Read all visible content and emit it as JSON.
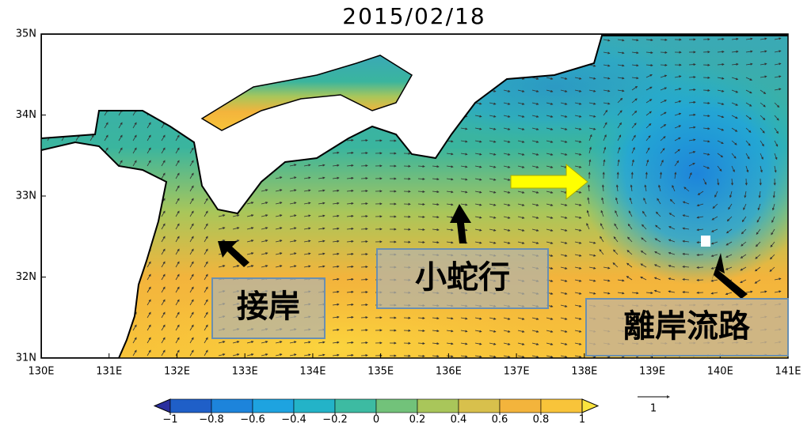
{
  "title": "2015/02/18",
  "lon_labels": [
    "130E",
    "131E",
    "132E",
    "133E",
    "134E",
    "135E",
    "136E",
    "137E",
    "138E",
    "139E",
    "140E",
    "141E"
  ],
  "lat_labels": [
    "35N",
    "34N",
    "33N",
    "32N",
    "31N"
  ],
  "colorbar": {
    "range": [
      -1,
      1
    ],
    "colors": [
      "#2b2f9e",
      "#1f5fc8",
      "#1d84db",
      "#1ea3e0",
      "#23b3c8",
      "#3dbba2",
      "#72c27a",
      "#a9c65a",
      "#d8c04c",
      "#f3b43c",
      "#f8c43a",
      "#fbe43e"
    ],
    "ticks": [
      {
        "value": -1,
        "label": "−1"
      },
      {
        "value": -0.8,
        "label": "−0.8"
      },
      {
        "value": -0.6,
        "label": "−0.6"
      },
      {
        "value": -0.4,
        "label": "−0.4"
      },
      {
        "value": -0.2,
        "label": "−0.2"
      },
      0,
      0.2,
      0.4,
      0.6,
      0.8,
      1
    ]
  },
  "vector_scale": "1",
  "annotations": [
    "接岸",
    "小蛇行",
    "離岸流路"
  ]
}
